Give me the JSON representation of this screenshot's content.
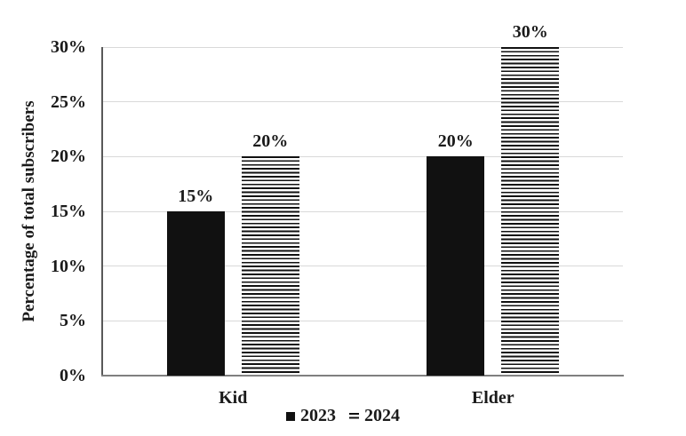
{
  "colors": {
    "bar_fill": "#111111",
    "stripe": "#111111",
    "gridline": "#d9d9d9",
    "y_axis_line": "#595959",
    "x_axis_line": "#7f7f7f",
    "text": "#1a1a1a",
    "background": "#ffffff"
  },
  "chart_data": {
    "type": "bar",
    "title": "",
    "categories": [
      "Kid",
      "Elder"
    ],
    "series": [
      {
        "name": "2023",
        "pattern": "solid",
        "values": [
          15,
          20
        ],
        "data_labels": [
          "15%",
          "20%"
        ]
      },
      {
        "name": "2024",
        "pattern": "striped-horizontal",
        "values": [
          20,
          30
        ],
        "data_labels": [
          "20%",
          "30%"
        ]
      }
    ],
    "xlabel": "",
    "ylabel": "Percentage of total subscribers",
    "ylim": [
      0,
      30
    ],
    "ytick_step": 5,
    "ytick_labels": [
      "0%",
      "5%",
      "10%",
      "15%",
      "20%",
      "25%",
      "30%"
    ],
    "grid": "horizontal",
    "legend": {
      "position": "bottom-center",
      "entries": [
        {
          "label": "2023",
          "swatch": "solid-black-square"
        },
        {
          "label": "2024",
          "swatch": "striped-square"
        }
      ]
    }
  }
}
